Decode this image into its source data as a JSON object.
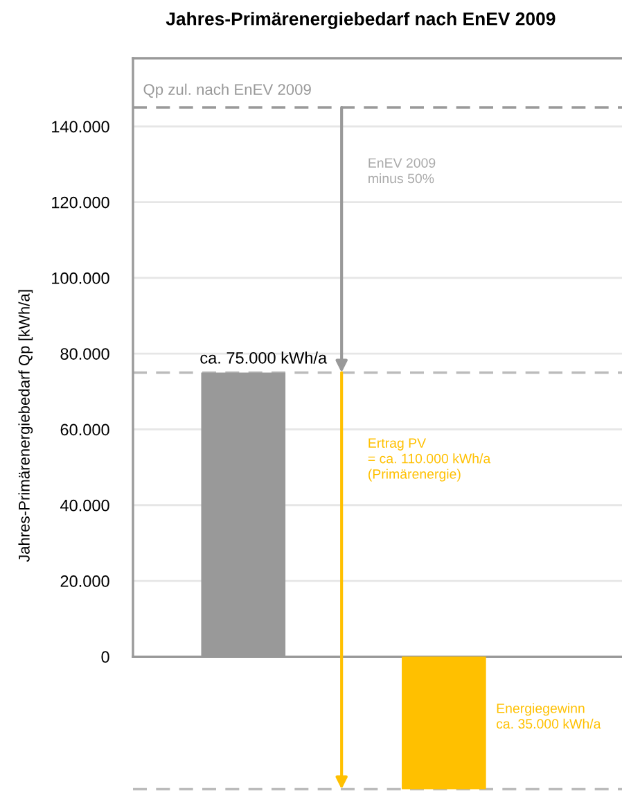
{
  "chart_data": {
    "type": "bar",
    "title": "Jahres-Primärenergiebedarf nach EnEV 2009",
    "ylabel": "Jahres-Primärenergiebedarf Qp [kWh/a]",
    "categories": [
      null,
      null
    ],
    "values": [
      75000,
      -35000
    ],
    "colors": [
      "#999999",
      "#ffc000"
    ],
    "value_labels": [
      "ca. 75.000 kWh/a",
      null
    ],
    "ylim": [
      -36000,
      158000
    ],
    "yticks": [
      {
        "value": 0,
        "label": "0"
      },
      {
        "value": 20000,
        "label": "20.000"
      },
      {
        "value": 40000,
        "label": "40.000"
      },
      {
        "value": 60000,
        "label": "60.000"
      },
      {
        "value": 80000,
        "label": "80.000"
      },
      {
        "value": 100000,
        "label": "100.000"
      },
      {
        "value": 120000,
        "label": "120.000"
      },
      {
        "value": 140000,
        "label": "140.000"
      }
    ],
    "grid": "y",
    "ref_lines": [
      {
        "axis": "y",
        "value": 145000,
        "label": "Qp zul. nach EnEV 2009",
        "color": "#999999",
        "line_style": "dashed"
      },
      {
        "axis": "y",
        "value": 75000,
        "label": null,
        "color": "#bbbbbb",
        "line_style": "dashed"
      },
      {
        "axis": "y",
        "value": -35000,
        "label": null,
        "color": "#bbbbbb",
        "line_style": "dashed"
      }
    ],
    "annotations": [
      "EnEV 2009\nminus 50%",
      "Ertrag PV\n= ca. 110.000 kWh/a\n(Primärenergie)",
      "Energiegewinn\nca. 35.000 kWh/a"
    ]
  }
}
